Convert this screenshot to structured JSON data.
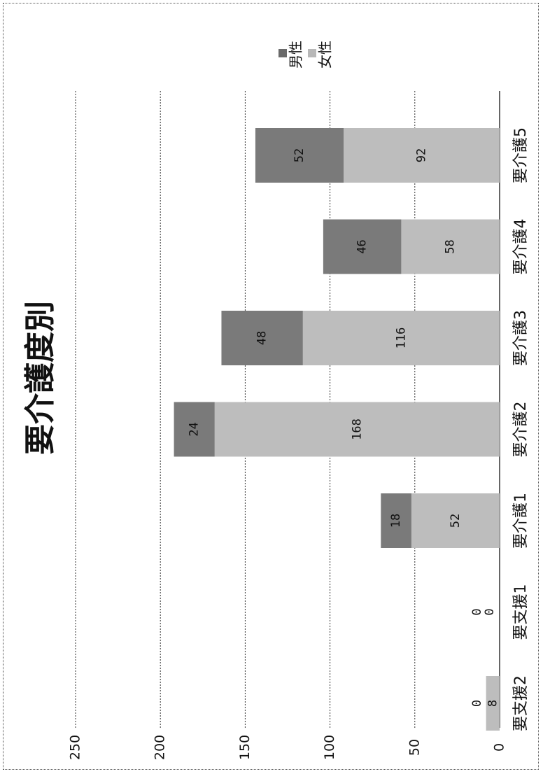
{
  "chart_data": {
    "type": "bar",
    "stacked": true,
    "orientation": "rotated-90ccw",
    "title": "要介護度別",
    "categories": [
      "要支援2",
      "要支援1",
      "要介護1",
      "要介護2",
      "要介護3",
      "要介護4",
      "要介護5"
    ],
    "series": [
      {
        "name": "女性",
        "values": [
          8,
          0,
          52,
          168,
          116,
          58,
          92
        ],
        "color": "#bdbdbd"
      },
      {
        "name": "男性",
        "values": [
          0,
          0,
          18,
          24,
          48,
          46,
          52
        ],
        "color": "#7a7a7a"
      }
    ],
    "ylim": [
      0,
      250
    ],
    "yticks": [
      0,
      50,
      100,
      150,
      200,
      250
    ],
    "grid": true,
    "legend": "top-right"
  }
}
